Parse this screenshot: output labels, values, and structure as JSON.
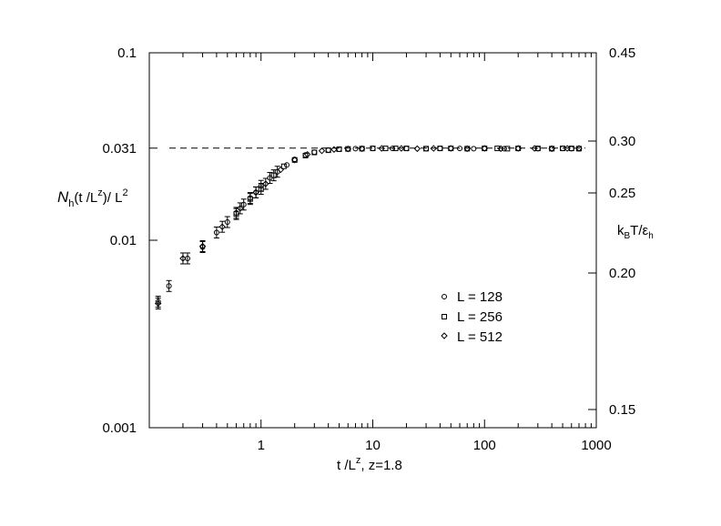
{
  "chart_data": {
    "type": "scatter",
    "xscale": "log",
    "yscale": "log",
    "xlim": [
      0.1,
      1000
    ],
    "ylim": [
      0.001,
      0.1
    ],
    "x_ticks": [
      "1",
      "10",
      "100",
      "1000"
    ],
    "y_ticks": [
      "0.001",
      "0.01",
      "0.031",
      "0.1"
    ],
    "y2_ticks": [
      "0.15",
      "0.20",
      "0.25",
      "0.30",
      "0.45"
    ],
    "xlabel": {
      "main": "t /L",
      "sup": "z",
      "rest": ", z=1.8"
    },
    "ylabel": {
      "main": "N",
      "sub1": "h",
      "mid": "(t /L",
      "sup1": "z",
      "mid2": ")/ L",
      "sup2": "2"
    },
    "y2label": {
      "main": "k",
      "sub1": "B",
      "mid": "T/ε",
      "sub2": "h"
    },
    "reference_line": {
      "y": 0.031,
      "style": "dashed",
      "x_range": [
        0.1,
        1000
      ]
    },
    "legend_position": "right-middle",
    "series": [
      {
        "name": "L = 128",
        "marker": "circle",
        "x": [
          0.12,
          0.15,
          0.22,
          0.3,
          0.4,
          0.5,
          0.6,
          0.7,
          0.8,
          0.9,
          1.0,
          1.2,
          1.4,
          1.7,
          2.0,
          2.5,
          3,
          4,
          5,
          7,
          10,
          15,
          20,
          30,
          40,
          60,
          80,
          100,
          150,
          200,
          300,
          400,
          500,
          600,
          700
        ],
        "y": [
          0.0047,
          0.0057,
          0.008,
          0.0092,
          0.011,
          0.0125,
          0.014,
          0.0155,
          0.0168,
          0.018,
          0.0195,
          0.0215,
          0.0232,
          0.0252,
          0.027,
          0.0285,
          0.0295,
          0.0303,
          0.0306,
          0.0308,
          0.0309,
          0.0309,
          0.0309,
          0.0308,
          0.0309,
          0.0309,
          0.0308,
          0.0309,
          0.0308,
          0.0309,
          0.0308,
          0.0309,
          0.0309,
          0.0308,
          0.0309
        ]
      },
      {
        "name": "L = 256",
        "marker": "square",
        "x": [
          0.6,
          0.8,
          1.0,
          1.3,
          1.6,
          2.0,
          2.5,
          3,
          4,
          5,
          6,
          8,
          10,
          13,
          16,
          20,
          30,
          40,
          50,
          70,
          100,
          130,
          160,
          200,
          300,
          400,
          500,
          600,
          700
        ],
        "y": [
          0.0138,
          0.0166,
          0.0188,
          0.0222,
          0.0248,
          0.0268,
          0.0283,
          0.0294,
          0.0302,
          0.0306,
          0.0307,
          0.0308,
          0.0309,
          0.0309,
          0.0309,
          0.0309,
          0.0308,
          0.0309,
          0.0309,
          0.0308,
          0.0309,
          0.0309,
          0.0308,
          0.0309,
          0.0309,
          0.0308,
          0.0309,
          0.0309,
          0.0308
        ]
      },
      {
        "name": "L = 512",
        "marker": "diamond",
        "x": [
          0.12,
          0.2,
          0.3,
          0.45,
          0.65,
          0.9,
          1.1,
          1.5,
          2.0,
          2.6,
          3.5,
          4.5,
          6,
          8,
          12,
          18,
          25,
          35,
          50,
          70,
          100,
          140,
          200,
          280,
          400,
          550,
          700
        ],
        "y": [
          0.0046,
          0.008,
          0.0093,
          0.0118,
          0.0148,
          0.018,
          0.02,
          0.0238,
          0.0268,
          0.0287,
          0.03,
          0.0305,
          0.0307,
          0.0308,
          0.0309,
          0.0309,
          0.0308,
          0.0309,
          0.0309,
          0.0308,
          0.0309,
          0.0308,
          0.0309,
          0.0309,
          0.0308,
          0.0309,
          0.0309
        ]
      }
    ]
  }
}
